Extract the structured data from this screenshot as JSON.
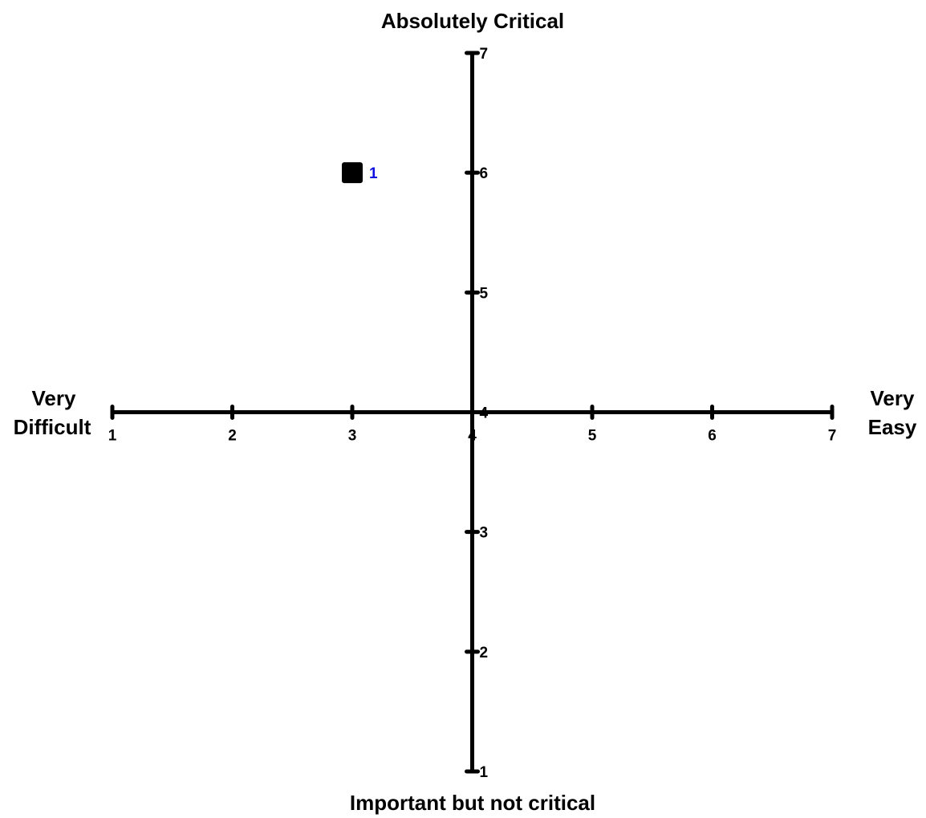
{
  "chart_data": {
    "type": "scatter",
    "x_axis": {
      "range": [
        1,
        7
      ],
      "ticks": [
        "1",
        "2",
        "3",
        "4",
        "5",
        "6",
        "7"
      ],
      "left_label": [
        "Very",
        "Difficult"
      ],
      "right_label": [
        "Very",
        "Easy"
      ]
    },
    "y_axis": {
      "range": [
        1,
        7
      ],
      "ticks": [
        "1",
        "2",
        "3",
        "4",
        "5",
        "6",
        "7"
      ],
      "top_label": "Absolutely Critical",
      "bottom_label": "Important but not critical"
    },
    "points": [
      {
        "x": 3,
        "y": 6,
        "label": "1"
      }
    ],
    "grid": false,
    "colors": {
      "axis": "#000000",
      "marker": "#000000",
      "point_label": "#1010e0"
    }
  }
}
